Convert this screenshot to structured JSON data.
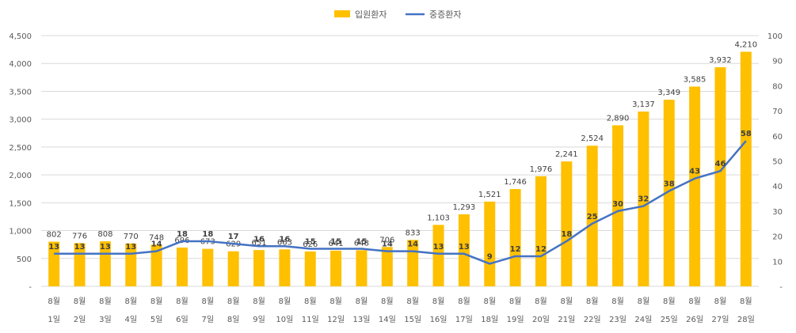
{
  "chart_data": {
    "type": "bar",
    "categories": [
      {
        "month": "8월",
        "day": "1일"
      },
      {
        "month": "8월",
        "day": "2일"
      },
      {
        "month": "8월",
        "day": "3일"
      },
      {
        "month": "8월",
        "day": "4일"
      },
      {
        "month": "8월",
        "day": "5일"
      },
      {
        "month": "8월",
        "day": "6일"
      },
      {
        "month": "8월",
        "day": "7일"
      },
      {
        "month": "8월",
        "day": "8일"
      },
      {
        "month": "8월",
        "day": "9일"
      },
      {
        "month": "8월",
        "day": "10일"
      },
      {
        "month": "8월",
        "day": "11일"
      },
      {
        "month": "8월",
        "day": "12일"
      },
      {
        "month": "8월",
        "day": "13일"
      },
      {
        "month": "8월",
        "day": "14일"
      },
      {
        "month": "8월",
        "day": "15일"
      },
      {
        "month": "8월",
        "day": "16일"
      },
      {
        "month": "8월",
        "day": "17일"
      },
      {
        "month": "8월",
        "day": "18일"
      },
      {
        "month": "8월",
        "day": "19일"
      },
      {
        "month": "8월",
        "day": "20일"
      },
      {
        "month": "8월",
        "day": "21일"
      },
      {
        "month": "8월",
        "day": "22일"
      },
      {
        "month": "8월",
        "day": "23일"
      },
      {
        "month": "8월",
        "day": "24일"
      },
      {
        "month": "8월",
        "day": "25일"
      },
      {
        "month": "8월",
        "day": "26일"
      },
      {
        "month": "8월",
        "day": "27일"
      },
      {
        "month": "8월",
        "day": "28일"
      }
    ],
    "series": [
      {
        "name": "입원환자",
        "kind": "bar",
        "axis": "left",
        "color": "#FFC000",
        "values": [
          802,
          776,
          808,
          770,
          748,
          696,
          673,
          629,
          651,
          663,
          626,
          641,
          648,
          706,
          833,
          1103,
          1293,
          1521,
          1746,
          1976,
          2241,
          2524,
          2890,
          3137,
          3349,
          3585,
          3932,
          4210
        ],
        "labels": [
          "802",
          "776",
          "808",
          "770",
          "748",
          "696",
          "673",
          "629",
          "651",
          "663",
          "626",
          "641",
          "648",
          "706",
          "833",
          "1,103",
          "1,293",
          "1,521",
          "1,746",
          "1,976",
          "2,241",
          "2,524",
          "2,890",
          "3,137",
          "3,349",
          "3,585",
          "3,932",
          "4,210"
        ]
      },
      {
        "name": "중증환자",
        "kind": "line",
        "axis": "right",
        "color": "#4472C4",
        "values": [
          13,
          13,
          13,
          13,
          14,
          18,
          18,
          17,
          16,
          16,
          15,
          15,
          15,
          14,
          14,
          13,
          13,
          9,
          12,
          12,
          18,
          25,
          30,
          32,
          38,
          43,
          46,
          58
        ]
      }
    ],
    "left_axis": {
      "ylim": [
        0,
        4500
      ],
      "ticks": [
        0,
        500,
        1000,
        1500,
        2000,
        2500,
        3000,
        3500,
        4000,
        4500
      ],
      "tick_labels": [
        "-",
        "500",
        "1,000",
        "1,500",
        "2,000",
        "2,500",
        "3,000",
        "3,500",
        "4,000",
        "4,500"
      ]
    },
    "right_axis": {
      "ylim": [
        0,
        100
      ],
      "ticks": [
        0,
        10,
        20,
        30,
        40,
        50,
        60,
        70,
        80,
        90,
        100
      ],
      "tick_labels": [
        "-",
        "10",
        "20",
        "30",
        "40",
        "50",
        "60",
        "70",
        "80",
        "90",
        "100"
      ]
    },
    "grid": true,
    "legend_position": "top-center"
  }
}
